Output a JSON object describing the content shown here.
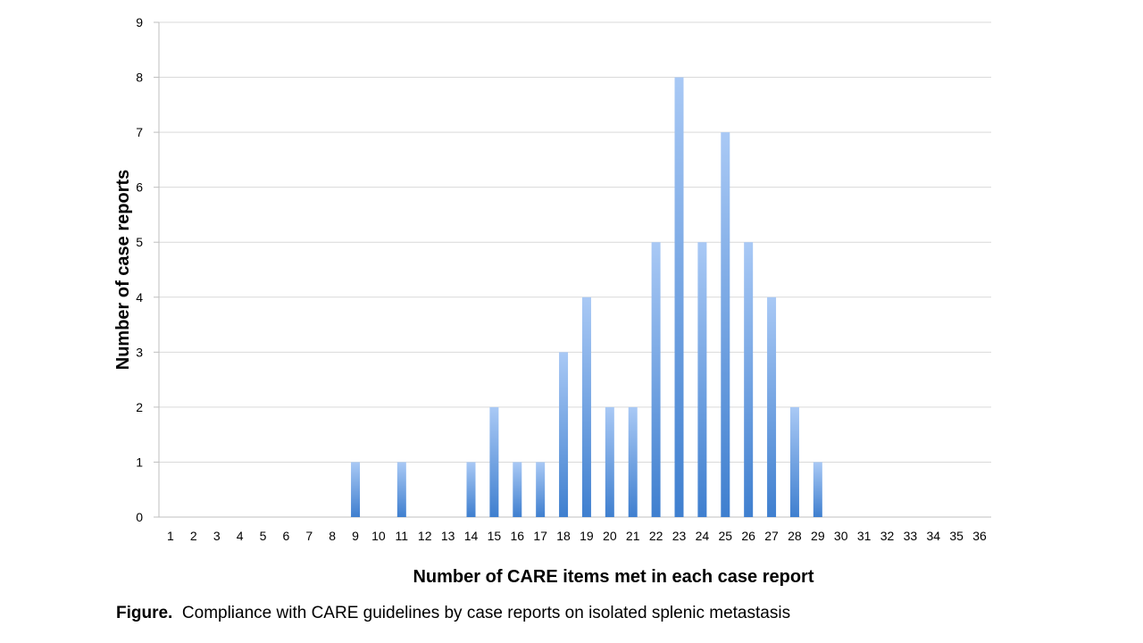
{
  "chart_data": {
    "type": "bar",
    "xlabel": "Number of CARE items met in each case report",
    "ylabel": "Number of case reports",
    "ylim": [
      0,
      9
    ],
    "yticks": [
      0,
      1,
      2,
      3,
      4,
      5,
      6,
      7,
      8,
      9
    ],
    "grid": true,
    "legend": "none",
    "categories": [
      "1",
      "2",
      "3",
      "4",
      "5",
      "6",
      "7",
      "8",
      "9",
      "10",
      "11",
      "12",
      "13",
      "14",
      "15",
      "16",
      "17",
      "18",
      "19",
      "20",
      "21",
      "22",
      "23",
      "24",
      "25",
      "26",
      "27",
      "28",
      "29",
      "30",
      "31",
      "32",
      "33",
      "34",
      "35",
      "36"
    ],
    "values": [
      0,
      0,
      0,
      0,
      0,
      0,
      0,
      0,
      1,
      0,
      1,
      0,
      0,
      1,
      2,
      1,
      1,
      3,
      4,
      2,
      2,
      5,
      8,
      5,
      7,
      5,
      4,
      2,
      1,
      0,
      0,
      0,
      0,
      0,
      0,
      0
    ],
    "colors": {
      "bar_top": "#a9c9f5",
      "bar_bottom": "#3f7fcf",
      "grid": "#d9d9d9",
      "axis": "#bfbfbf"
    }
  },
  "caption": {
    "label": "Figure.",
    "text": "Compliance with CARE guidelines by case reports on isolated splenic metastasis"
  }
}
